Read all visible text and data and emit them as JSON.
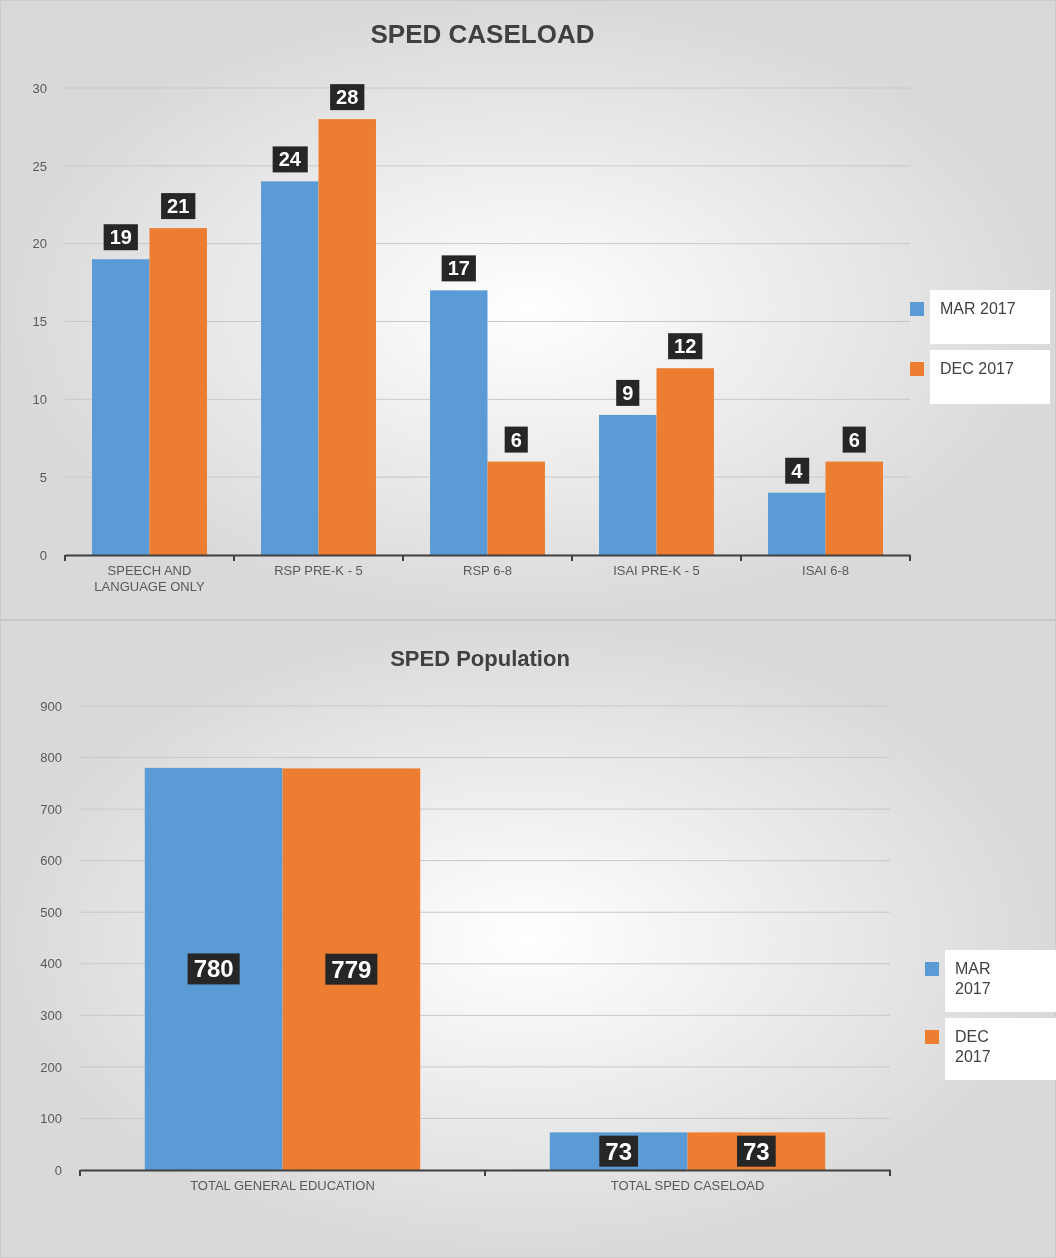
{
  "chart_data": [
    {
      "type": "bar",
      "title": "SPED CASELOAD",
      "categories": [
        "SPEECH AND LANGUAGE ONLY",
        "RSP PRE-K - 5",
        "RSP 6-8",
        "ISAI PRE-K - 5",
        "ISAI 6-8"
      ],
      "series": [
        {
          "name": "MAR 2017",
          "color": "#5b9bd5",
          "values": [
            19,
            24,
            17,
            9,
            4
          ]
        },
        {
          "name": "DEC 2017",
          "color": "#ed7d31",
          "values": [
            21,
            28,
            6,
            12,
            6
          ]
        }
      ],
      "ylim": [
        0,
        30
      ],
      "yticks": [
        0,
        5,
        10,
        15,
        20,
        25,
        30
      ],
      "grid": "y",
      "legend": "right",
      "data_labels": true
    },
    {
      "type": "bar",
      "title": "SPED Population",
      "categories": [
        "TOTAL GENERAL EDUCATION",
        "TOTAL SPED CASELOAD"
      ],
      "series": [
        {
          "name": "MAR 2017",
          "color": "#5b9bd5",
          "values": [
            780,
            73
          ]
        },
        {
          "name": "DEC 2017",
          "color": "#ed7d31",
          "values": [
            779,
            73
          ]
        }
      ],
      "ylim": [
        0,
        900
      ],
      "yticks": [
        0,
        100,
        200,
        300,
        400,
        500,
        600,
        700,
        800,
        900
      ],
      "grid": "y",
      "legend": "right",
      "data_labels": true
    }
  ]
}
